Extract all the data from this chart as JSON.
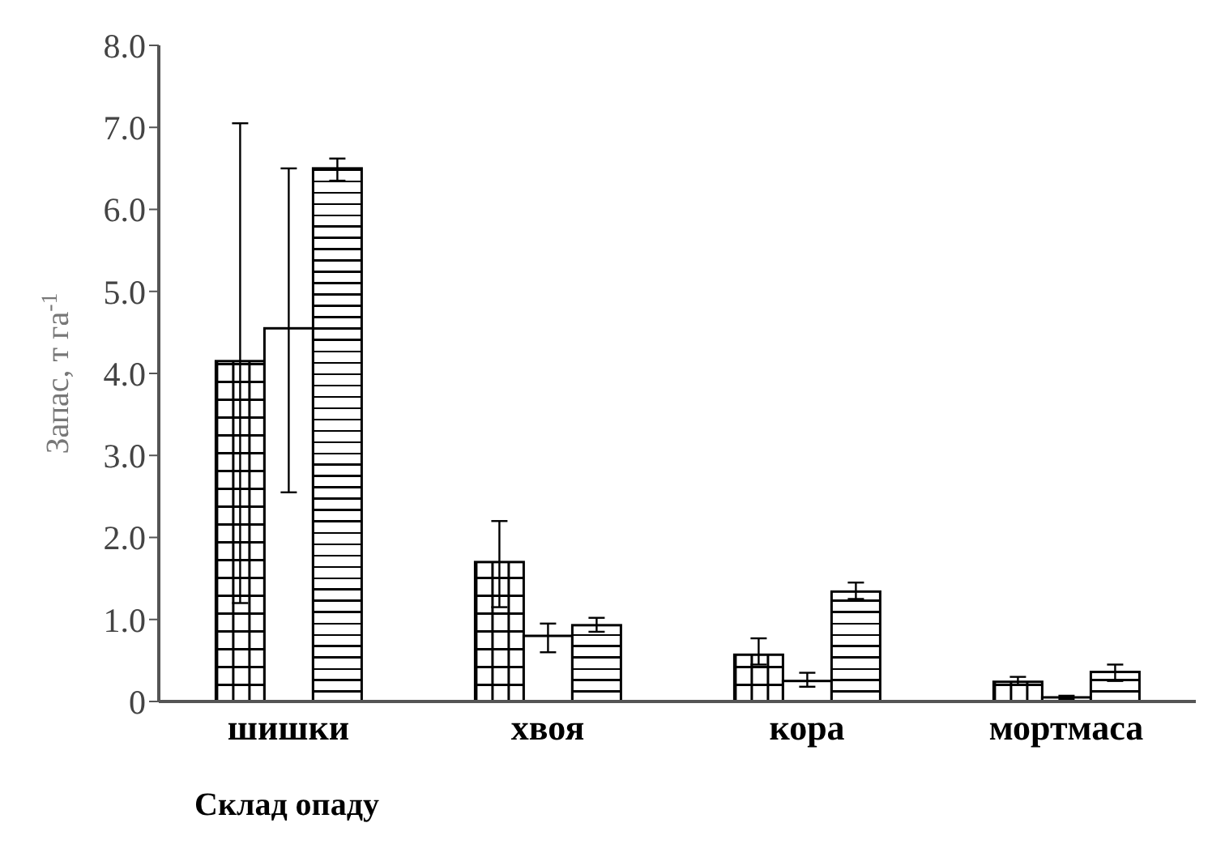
{
  "chart_data": {
    "type": "bar",
    "xlabel": "Склад опаду",
    "ylabel": "Запас, т га$^{-1}$",
    "categories": [
      "шишки",
      "хвоя",
      "кора",
      "мортмаса"
    ],
    "series": [
      {
        "color": "#000000",
        "values": [
          4.15,
          1.7,
          0.57,
          0.24
        ],
        "errors": [
          [
            1.2,
            7.05
          ],
          [
            1.15,
            2.2
          ],
          [
            0.45,
            0.77
          ],
          [
            0.2,
            0.3
          ]
        ]
      },
      {
        "color": "#000000",
        "values": [
          4.55,
          0.8,
          0.25,
          0.05
        ],
        "errors": [
          [
            2.55,
            6.5
          ],
          [
            0.6,
            0.95
          ],
          [
            0.18,
            0.35
          ],
          [
            0.03,
            0.07
          ]
        ]
      },
      {
        "color": "#000000",
        "values": [
          6.5,
          0.93,
          1.34,
          0.36
        ],
        "errors": [
          [
            6.35,
            6.62
          ],
          [
            0.85,
            1.02
          ],
          [
            1.25,
            1.45
          ],
          [
            0.25,
            0.45
          ]
        ]
      }
    ],
    "ylim": [
      0,
      8
    ],
    "yticks": [
      0,
      {
        "value": 1,
        "label": "1.0"
      },
      {
        "value": 2,
        "label": "2.0"
      },
      {
        "value": 3,
        "label": "3.0"
      },
      {
        "value": 4,
        "label": "4.0"
      },
      {
        "value": 5,
        "label": "5.0"
      },
      {
        "value": 6,
        "label": "6.0"
      },
      {
        "value": 7,
        "label": "7.0"
      },
      {
        "value": 8,
        "label": "8.0"
      }
    ],
    "grid": false,
    "legend": false
  }
}
